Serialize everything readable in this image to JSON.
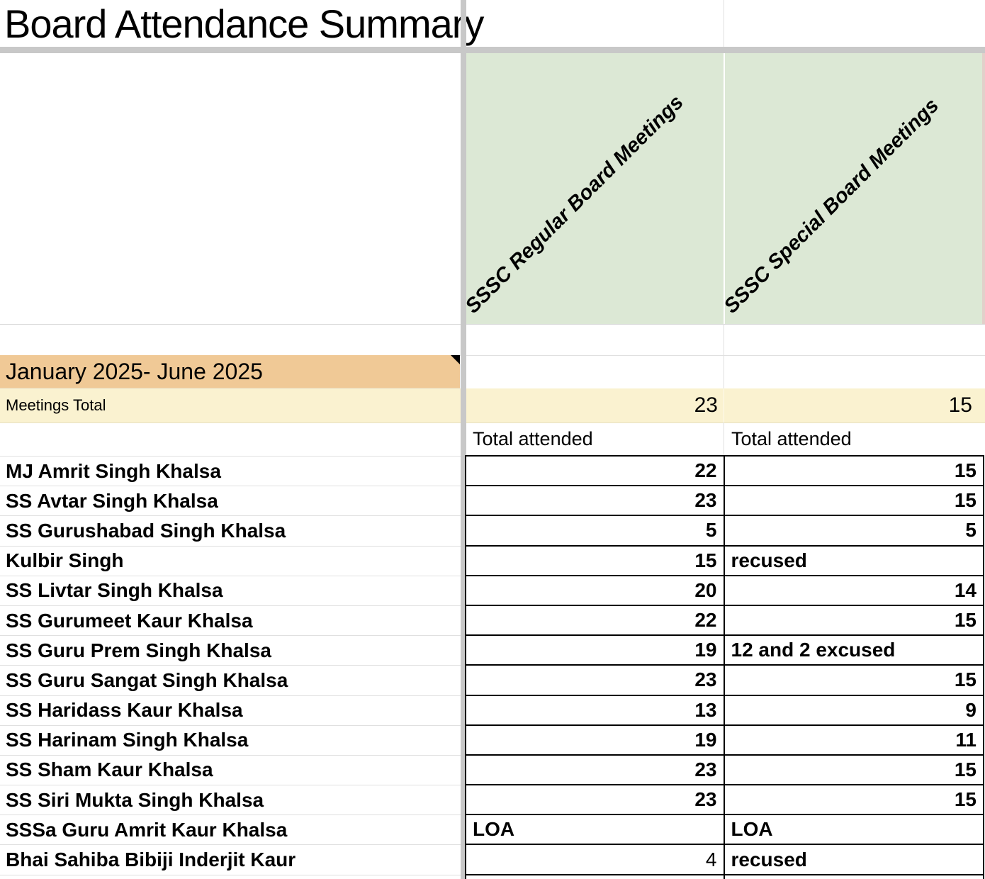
{
  "title": "Board Attendance Summary",
  "column_headers": {
    "regular": "SSSC Regular Board Meetings",
    "special": "SSSC Special Board Meetings"
  },
  "period_label": "January 2025- June 2025",
  "meetings_total": {
    "label": "Meetings Total",
    "regular": "23",
    "special": "15"
  },
  "attended_header": {
    "regular": "Total attended",
    "special": "Total attended"
  },
  "members": [
    {
      "name": "MJ Amrit Singh Khalsa",
      "regular": {
        "text": "22",
        "align": "right",
        "bold": true
      },
      "special": {
        "text": "15",
        "align": "right",
        "bold": true
      }
    },
    {
      "name": "SS Avtar Singh Khalsa",
      "regular": {
        "text": "23",
        "align": "right",
        "bold": true
      },
      "special": {
        "text": "15",
        "align": "right",
        "bold": true
      }
    },
    {
      "name": "SS Gurushabad Singh Khalsa",
      "regular": {
        "text": "5",
        "align": "right",
        "bold": true
      },
      "special": {
        "text": "5",
        "align": "right",
        "bold": true
      }
    },
    {
      "name": "Kulbir Singh",
      "regular": {
        "text": "15",
        "align": "right",
        "bold": true
      },
      "special": {
        "text": "recused",
        "align": "left",
        "bold": true
      }
    },
    {
      "name": "SS Livtar Singh Khalsa",
      "regular": {
        "text": "20",
        "align": "right",
        "bold": true
      },
      "special": {
        "text": "14",
        "align": "right",
        "bold": true
      }
    },
    {
      "name": "SS Gurumeet Kaur Khalsa",
      "regular": {
        "text": "22",
        "align": "right",
        "bold": true
      },
      "special": {
        "text": "15",
        "align": "right",
        "bold": true
      }
    },
    {
      "name": "SS Guru Prem Singh Khalsa",
      "regular": {
        "text": "19",
        "align": "right",
        "bold": true
      },
      "special": {
        "text": "12 and 2 excused",
        "align": "left",
        "bold": true
      }
    },
    {
      "name": "SS Guru Sangat Singh Khalsa",
      "regular": {
        "text": "23",
        "align": "right",
        "bold": true
      },
      "special": {
        "text": "15",
        "align": "right",
        "bold": true
      }
    },
    {
      "name": "SS Haridass Kaur Khalsa",
      "regular": {
        "text": "13",
        "align": "right",
        "bold": true
      },
      "special": {
        "text": "9",
        "align": "right",
        "bold": true
      }
    },
    {
      "name": "SS Harinam Singh Khalsa",
      "regular": {
        "text": "19",
        "align": "right",
        "bold": true
      },
      "special": {
        "text": "11",
        "align": "right",
        "bold": true
      }
    },
    {
      "name": "SS Sham Kaur Khalsa",
      "regular": {
        "text": "23",
        "align": "right",
        "bold": true
      },
      "special": {
        "text": "15",
        "align": "right",
        "bold": true
      }
    },
    {
      "name": "SS Siri Mukta Singh Khalsa",
      "regular": {
        "text": "23",
        "align": "right",
        "bold": true
      },
      "special": {
        "text": "15",
        "align": "right",
        "bold": true
      }
    },
    {
      "name": "SSSa Guru Amrit Kaur Khalsa",
      "regular": {
        "text": "LOA",
        "align": "left",
        "bold": true
      },
      "special": {
        "text": "LOA",
        "align": "left",
        "bold": true
      }
    },
    {
      "name": "Bhai Sahiba Bibiji Inderjit Kaur",
      "regular": {
        "text": "4",
        "align": "right",
        "bold": false
      },
      "special": {
        "text": "recused",
        "align": "left",
        "bold": true
      }
    }
  ],
  "colors": {
    "header_green": "#dce8d5",
    "period_orange": "#f0c996",
    "total_yellow": "#faf2d0",
    "divider_gray": "#c8c8c8",
    "grid_line": "#e0e0e0",
    "cell_border": "#000000",
    "note_marker": "#000000"
  }
}
